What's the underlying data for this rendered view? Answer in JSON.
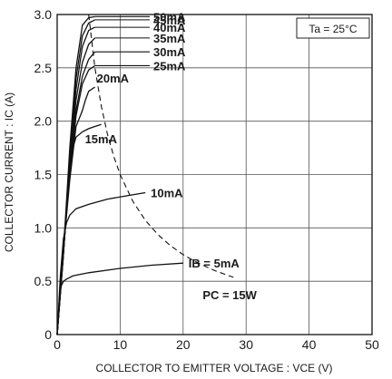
{
  "chart_data": {
    "type": "line",
    "xlabel": "COLLECTOR TO EMITTER VOLTAGE : VCE (V)",
    "ylabel": "COLLECTOR CURRENT : IC (A)",
    "xlim": [
      0,
      50
    ],
    "ylim": [
      0,
      3.0
    ],
    "xticks": [
      "0",
      "10",
      "20",
      "30",
      "40",
      "50"
    ],
    "yticks": [
      "0",
      "0.5",
      "1.0",
      "1.5",
      "2.0",
      "2.5",
      "3.0"
    ],
    "grid": true,
    "condition": "Ta = 25°C",
    "series": [
      {
        "name": "IB = 5mA",
        "label_text": "IB = 5mA",
        "x": [
          0,
          0.3,
          0.6,
          1.0,
          1.5,
          2.5,
          5,
          10,
          15,
          20
        ],
        "y": [
          0,
          0.3,
          0.45,
          0.5,
          0.52,
          0.55,
          0.58,
          0.62,
          0.65,
          0.67
        ]
      },
      {
        "name": "10mA",
        "label_text": "10mA",
        "x": [
          0,
          0.5,
          1.0,
          1.5,
          2.0,
          3.0,
          5,
          8,
          11,
          14
        ],
        "y": [
          0,
          0.55,
          0.9,
          1.05,
          1.12,
          1.18,
          1.22,
          1.27,
          1.3,
          1.33
        ]
      },
      {
        "name": "15mA",
        "label_text": "15mA",
        "x": [
          0,
          1.0,
          2.0,
          2.5,
          3.0,
          4.0,
          5.0,
          6.0,
          7.0
        ],
        "y": [
          0,
          0.85,
          1.5,
          1.75,
          1.85,
          1.9,
          1.93,
          1.95,
          1.97
        ]
      },
      {
        "name": "20mA",
        "label_text": "20mA",
        "x": [
          0,
          1.0,
          2.0,
          3.0,
          4.0,
          4.5,
          5.0,
          6.0
        ],
        "y": [
          0,
          0.8,
          1.45,
          1.95,
          2.1,
          2.2,
          2.28,
          2.32
        ]
      },
      {
        "name": "25mA",
        "label_text": "25mA",
        "x": [
          0,
          1.0,
          2.0,
          3.0,
          4.0,
          5.0,
          6.0
        ],
        "y": [
          0,
          0.78,
          1.5,
          2.05,
          2.35,
          2.48,
          2.52
        ]
      },
      {
        "name": "30mA",
        "label_text": "30mA",
        "x": [
          0,
          1.0,
          2.0,
          3.0,
          4.0,
          5.0,
          6.0
        ],
        "y": [
          0,
          0.77,
          1.55,
          2.1,
          2.42,
          2.58,
          2.65
        ]
      },
      {
        "name": "35mA",
        "label_text": "35mA",
        "x": [
          0,
          1.0,
          2.0,
          3.0,
          4.0,
          5.0,
          6.0
        ],
        "y": [
          0,
          0.75,
          1.6,
          2.2,
          2.55,
          2.72,
          2.78
        ]
      },
      {
        "name": "40mA",
        "label_text": "40mA",
        "x": [
          0,
          1.0,
          2.0,
          3.0,
          4.0,
          5.0,
          6.0
        ],
        "y": [
          0,
          0.75,
          1.65,
          2.3,
          2.7,
          2.85,
          2.88
        ]
      },
      {
        "name": "45mA",
        "label_text": "45mA",
        "x": [
          0,
          1.0,
          2.0,
          3.0,
          4.0,
          5.0,
          6.0
        ],
        "y": [
          0,
          0.75,
          1.7,
          2.4,
          2.8,
          2.92,
          2.95
        ]
      },
      {
        "name": "50mA",
        "label_text": "50mA",
        "x": [
          0,
          1.0,
          2.0,
          3.0,
          4.0,
          5.0,
          6.0
        ],
        "y": [
          0,
          0.78,
          1.75,
          2.5,
          2.9,
          2.97,
          2.98
        ]
      }
    ],
    "power_limit": {
      "name": "PC = 15W",
      "label_text": "PC = 15W",
      "style": "dashed",
      "x": [
        5,
        6,
        7,
        8,
        9,
        10,
        12,
        14,
        16,
        18,
        20,
        22,
        25,
        28
      ],
      "y": [
        3.0,
        2.5,
        2.143,
        1.875,
        1.667,
        1.5,
        1.25,
        1.071,
        0.9375,
        0.833,
        0.75,
        0.682,
        0.6,
        0.536
      ]
    }
  }
}
